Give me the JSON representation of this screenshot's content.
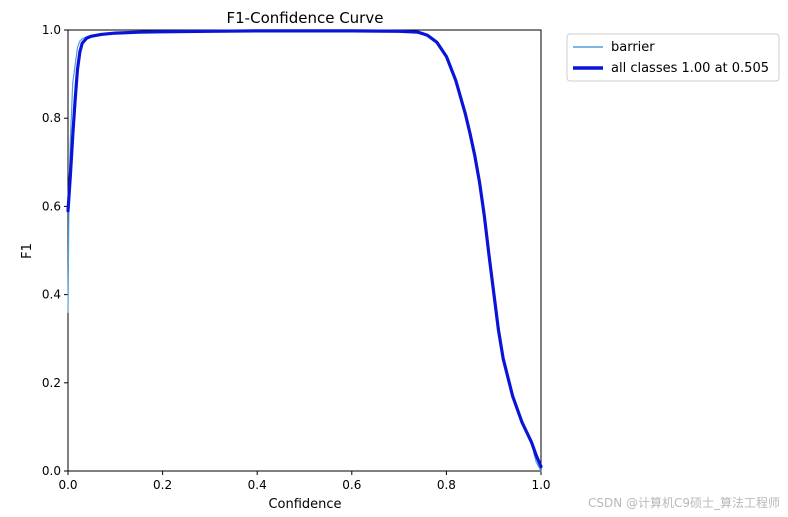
{
  "chart_data": {
    "type": "line",
    "title": "F1-Confidence Curve",
    "xlabel": "Confidence",
    "ylabel": "F1",
    "xlim": [
      0,
      1
    ],
    "ylim": [
      0,
      1
    ],
    "xticks": [
      "0.0",
      "0.2",
      "0.4",
      "0.6",
      "0.8",
      "1.0"
    ],
    "yticks": [
      "0.0",
      "0.2",
      "0.4",
      "0.6",
      "0.8",
      "1.0"
    ],
    "grid": false,
    "legend_position": "outside-top-right",
    "series": [
      {
        "name": "barrier",
        "color": "#4f9fd9",
        "x": [
          0,
          0.002,
          0.005,
          0.01,
          0.015,
          0.02,
          0.025,
          0.03,
          0.04,
          0.05,
          0.07,
          0.1,
          0.15,
          0.2,
          0.3,
          0.4,
          0.5,
          0.6,
          0.7,
          0.74,
          0.76,
          0.78,
          0.8,
          0.82,
          0.84,
          0.85,
          0.86,
          0.87,
          0.88,
          0.89,
          0.9,
          0.91,
          0.92,
          0.94,
          0.96,
          0.98,
          0.985,
          0.99,
          1.0
        ],
        "y": [
          0.36,
          0.62,
          0.75,
          0.88,
          0.92,
          0.96,
          0.975,
          0.98,
          0.985,
          0.988,
          0.99,
          0.993,
          0.995,
          0.996,
          0.997,
          0.998,
          0.998,
          0.998,
          0.997,
          0.995,
          0.99,
          0.975,
          0.94,
          0.885,
          0.81,
          0.77,
          0.725,
          0.665,
          0.59,
          0.5,
          0.41,
          0.32,
          0.255,
          0.17,
          0.11,
          0.07,
          0.04,
          0.02,
          0.0
        ]
      },
      {
        "name": "all classes 1.00 at 0.505",
        "color": "#0a14d8",
        "x": [
          0,
          0.005,
          0.01,
          0.015,
          0.02,
          0.025,
          0.03,
          0.04,
          0.05,
          0.07,
          0.1,
          0.15,
          0.2,
          0.3,
          0.4,
          0.5,
          0.6,
          0.7,
          0.74,
          0.76,
          0.78,
          0.8,
          0.82,
          0.84,
          0.85,
          0.86,
          0.87,
          0.88,
          0.89,
          0.9,
          0.91,
          0.92,
          0.94,
          0.96,
          0.98,
          0.99,
          1.0
        ],
        "y": [
          0.59,
          0.67,
          0.76,
          0.84,
          0.91,
          0.95,
          0.97,
          0.982,
          0.986,
          0.99,
          0.993,
          0.995,
          0.996,
          0.997,
          0.998,
          0.998,
          0.998,
          0.997,
          0.995,
          0.988,
          0.972,
          0.94,
          0.885,
          0.81,
          0.765,
          0.715,
          0.655,
          0.58,
          0.49,
          0.405,
          0.32,
          0.255,
          0.17,
          0.11,
          0.065,
          0.035,
          0.01
        ]
      }
    ]
  },
  "watermark": "CSDN @计算机C9硕士_算法工程师"
}
